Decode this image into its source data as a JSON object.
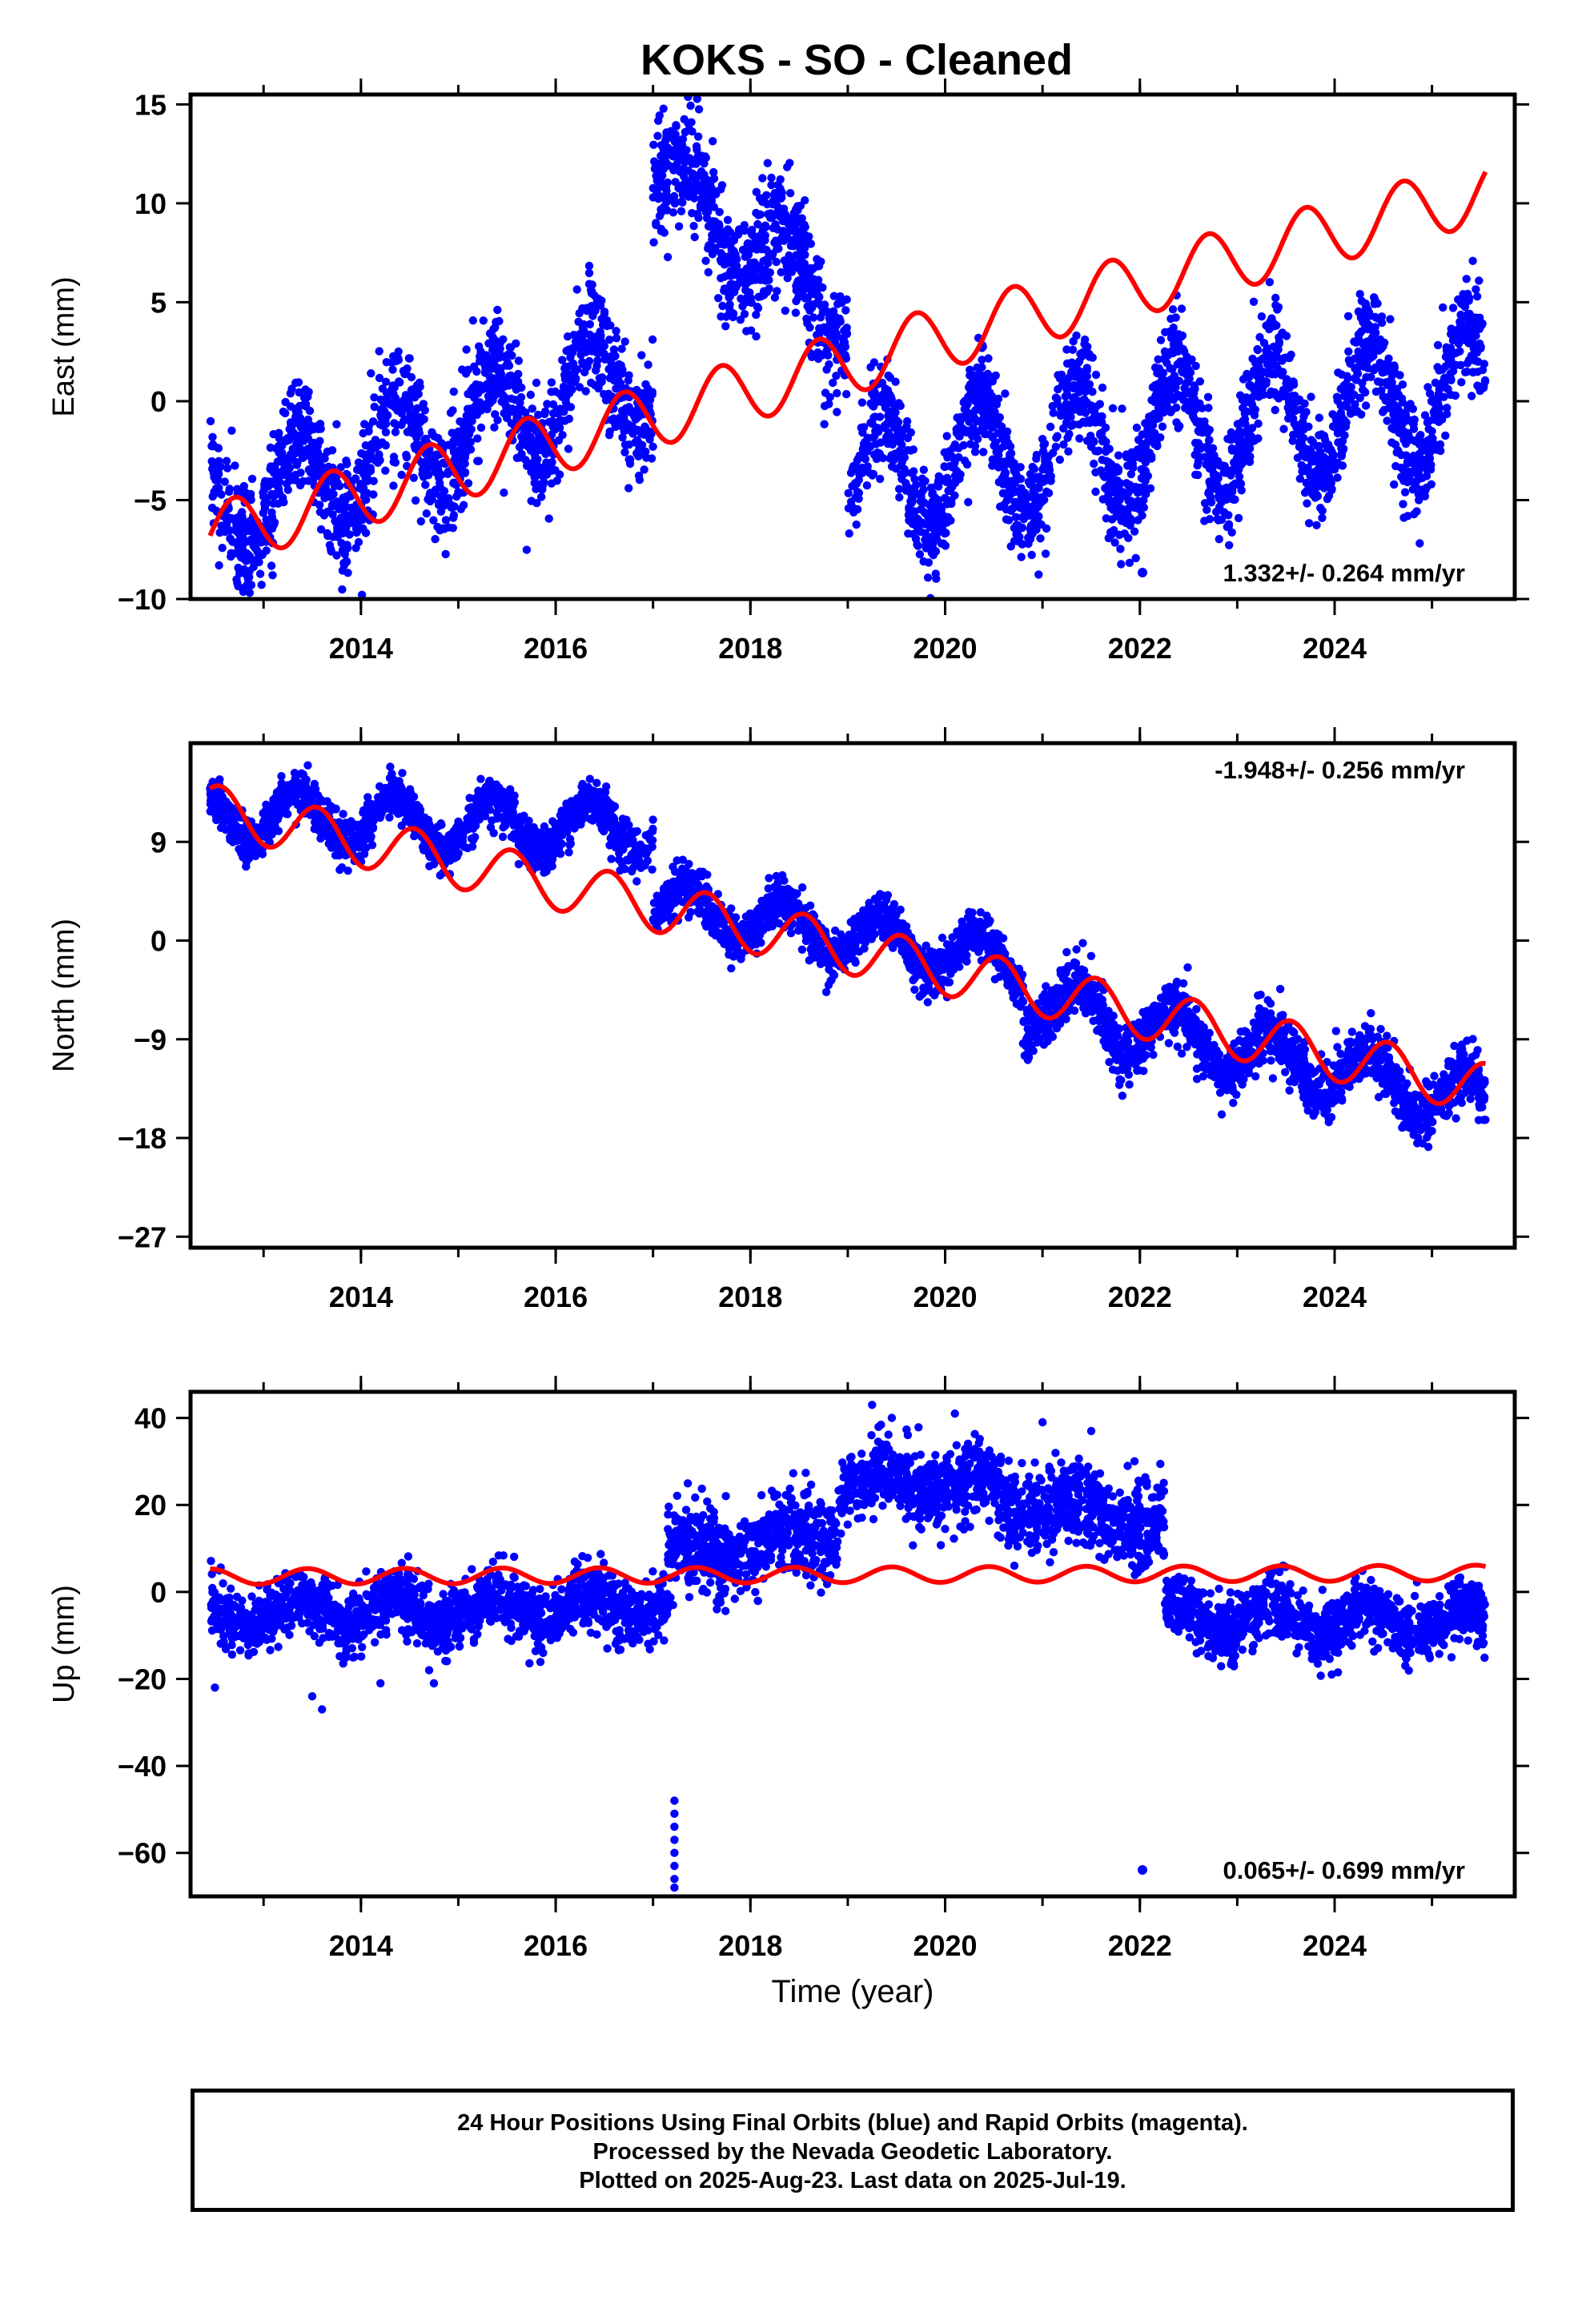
{
  "title": "KOKS  - SO - Cleaned",
  "xlabel": "Time (year)",
  "footer": {
    "line1": "24 Hour Positions Using Final Orbits (blue) and Rapid Orbits (magenta).",
    "line2": "Processed by the Nevada Geodetic Laboratory.",
    "line3": "Plotted on 2025-Aug-23. Last data on 2025-Jul-19."
  },
  "colors": {
    "points": "#0000ff",
    "model": "#ff0000",
    "axes": "#000000"
  },
  "chart_data": [
    {
      "type": "scatter",
      "name": "east",
      "ylabel": "East (mm)",
      "xlim": [
        2012.25,
        2025.85
      ],
      "ylim": [
        -10,
        15.5
      ],
      "xticks": [
        2014,
        2016,
        2018,
        2020,
        2022,
        2024
      ],
      "yticks": [
        -10,
        -5,
        0,
        5,
        10,
        15
      ],
      "rate_label": "1.332+/- 0.264 mm/yr",
      "rate_position": "bottom-right",
      "data_range": [
        2012.45,
        2025.55
      ],
      "segments": [
        {
          "start": 2012.45,
          "end": 2017.0,
          "offset": -5.5,
          "trend": 1.6,
          "amp": 2.6,
          "noise": 1.4
        },
        {
          "start": 2017.0,
          "end": 2019.0,
          "offset": 11.5,
          "trend": -3.5,
          "amp": 2.0,
          "noise": 1.5
        },
        {
          "start": 2019.0,
          "end": 2025.55,
          "offset": -4.0,
          "trend": 0.7,
          "amp": 3.3,
          "noise": 1.3
        }
      ],
      "model": {
        "start": 2012.45,
        "end": 2025.55,
        "y0": -6.8,
        "rate": 1.332,
        "amp": 1.6,
        "phase": 0.45
      }
    },
    {
      "type": "scatter",
      "name": "north",
      "ylabel": "North (mm)",
      "xlim": [
        2012.25,
        2025.85
      ],
      "ylim": [
        -28,
        18
      ],
      "xticks": [
        2014,
        2016,
        2018,
        2020,
        2022,
        2024
      ],
      "yticks": [
        -27,
        -18,
        -9,
        0,
        9
      ],
      "rate_label": "-1.948+/- 0.256 mm/yr",
      "rate_position": "top-right",
      "data_range": [
        2012.45,
        2025.55
      ],
      "segments": [
        {
          "start": 2012.45,
          "end": 2017.0,
          "offset": 11.5,
          "trend": -0.3,
          "amp": 2.3,
          "noise": 1.0
        },
        {
          "start": 2017.0,
          "end": 2020.8,
          "offset": 3.5,
          "trend": -1.5,
          "amp": 2.2,
          "noise": 1.0
        },
        {
          "start": 2020.8,
          "end": 2025.55,
          "offset": -5.5,
          "trend": -2.0,
          "amp": 2.4,
          "noise": 1.3
        }
      ],
      "model": {
        "start": 2012.45,
        "end": 2025.55,
        "y0": 12.0,
        "rate": -1.948,
        "amp": 2.3,
        "phase": 0.3
      }
    },
    {
      "type": "scatter",
      "name": "up",
      "ylabel": "Up (mm)",
      "xlim": [
        2012.25,
        2025.85
      ],
      "ylim": [
        -70,
        46
      ],
      "xticks": [
        2014,
        2016,
        2018,
        2020,
        2022,
        2024
      ],
      "yticks": [
        -60,
        -40,
        -20,
        0,
        20,
        40
      ],
      "rate_label": "0.065+/- 0.699 mm/yr",
      "rate_position": "bottom-right",
      "data_range": [
        2012.45,
        2025.55
      ],
      "segments": [
        {
          "start": 2012.45,
          "end": 2017.15,
          "offset": -5.0,
          "trend": 0.4,
          "amp": 3.0,
          "noise": 3.5
        },
        {
          "start": 2017.15,
          "end": 2018.9,
          "offset": 7.0,
          "trend": 4.0,
          "amp": 3.0,
          "noise": 5.0
        },
        {
          "start": 2018.9,
          "end": 2020.5,
          "offset": 25.0,
          "trend": -0.5,
          "amp": 3.0,
          "noise": 4.0
        },
        {
          "start": 2020.5,
          "end": 2022.25,
          "offset": 22.0,
          "trend": -4.0,
          "amp": 3.0,
          "noise": 5.0
        },
        {
          "start": 2022.25,
          "end": 2025.55,
          "offset": -6.0,
          "trend": -0.3,
          "amp": 3.0,
          "noise": 3.5
        }
      ],
      "outliers": [
        {
          "x": 2017.22,
          "y": -48
        },
        {
          "x": 2017.22,
          "y": -51
        },
        {
          "x": 2017.22,
          "y": -54
        },
        {
          "x": 2017.22,
          "y": -57
        },
        {
          "x": 2017.22,
          "y": -60
        },
        {
          "x": 2017.22,
          "y": -63
        },
        {
          "x": 2017.22,
          "y": -66
        },
        {
          "x": 2017.22,
          "y": -68
        },
        {
          "x": 2012.5,
          "y": -22
        },
        {
          "x": 2013.6,
          "y": -27
        },
        {
          "x": 2013.5,
          "y": -24
        },
        {
          "x": 2014.2,
          "y": -21
        },
        {
          "x": 2014.75,
          "y": -21
        },
        {
          "x": 2014.7,
          "y": -18
        },
        {
          "x": 2019.25,
          "y": 43
        },
        {
          "x": 2020.1,
          "y": 41
        },
        {
          "x": 2021.0,
          "y": 39
        },
        {
          "x": 2021.5,
          "y": 37
        }
      ],
      "model": {
        "start": 2012.45,
        "end": 2025.55,
        "y0": 3.5,
        "rate": 0.065,
        "amp": 1.8,
        "phase": 0.2
      }
    }
  ]
}
